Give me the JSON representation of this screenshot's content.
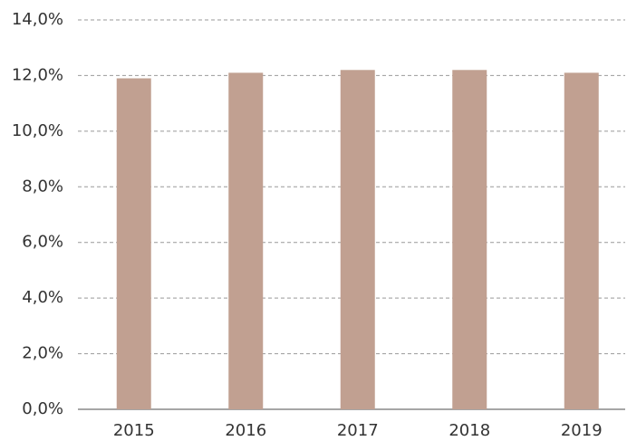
{
  "chart_data": {
    "type": "bar",
    "categories": [
      "2015",
      "2016",
      "2017",
      "2018",
      "2019"
    ],
    "values": [
      11.9,
      12.1,
      12.2,
      12.2,
      12.1
    ],
    "color": "#c1a091",
    "ylim": [
      0,
      14
    ],
    "yticks": [
      {
        "value": 0,
        "label": "0,0%"
      },
      {
        "value": 2,
        "label": "2,0%"
      },
      {
        "value": 4,
        "label": "4,0%"
      },
      {
        "value": 6,
        "label": "6,0%"
      },
      {
        "value": 8,
        "label": "8,0%"
      },
      {
        "value": 10,
        "label": "10,0%"
      },
      {
        "value": 12,
        "label": "12,0%"
      },
      {
        "value": 14,
        "label": "14,0%"
      }
    ],
    "grid": true
  }
}
